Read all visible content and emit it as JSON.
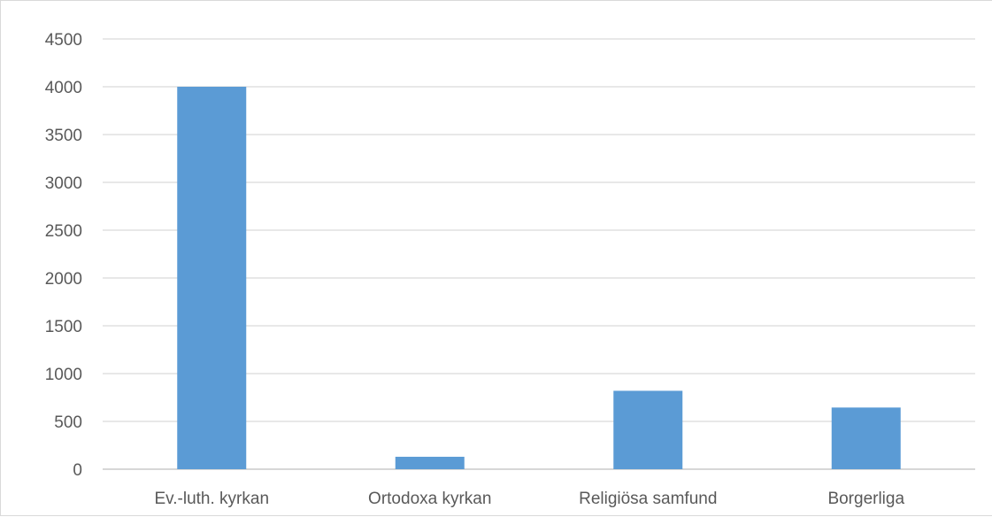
{
  "chart_data": {
    "type": "bar",
    "categories": [
      "Ev.-luth. kyrkan",
      "Ortodoxa kyrkan",
      "Religiösa samfund",
      "Borgerliga"
    ],
    "values": [
      4000,
      130,
      820,
      645
    ],
    "yticks": [
      "0",
      "500",
      "1000",
      "1500",
      "2000",
      "2500",
      "3000",
      "3500",
      "4000",
      "4500"
    ],
    "ylim": [
      0,
      4500
    ],
    "grid": true,
    "colors": {
      "bar": "#5b9bd5",
      "grid": "#d9d9d9",
      "axis": "#bfbfbf"
    }
  }
}
